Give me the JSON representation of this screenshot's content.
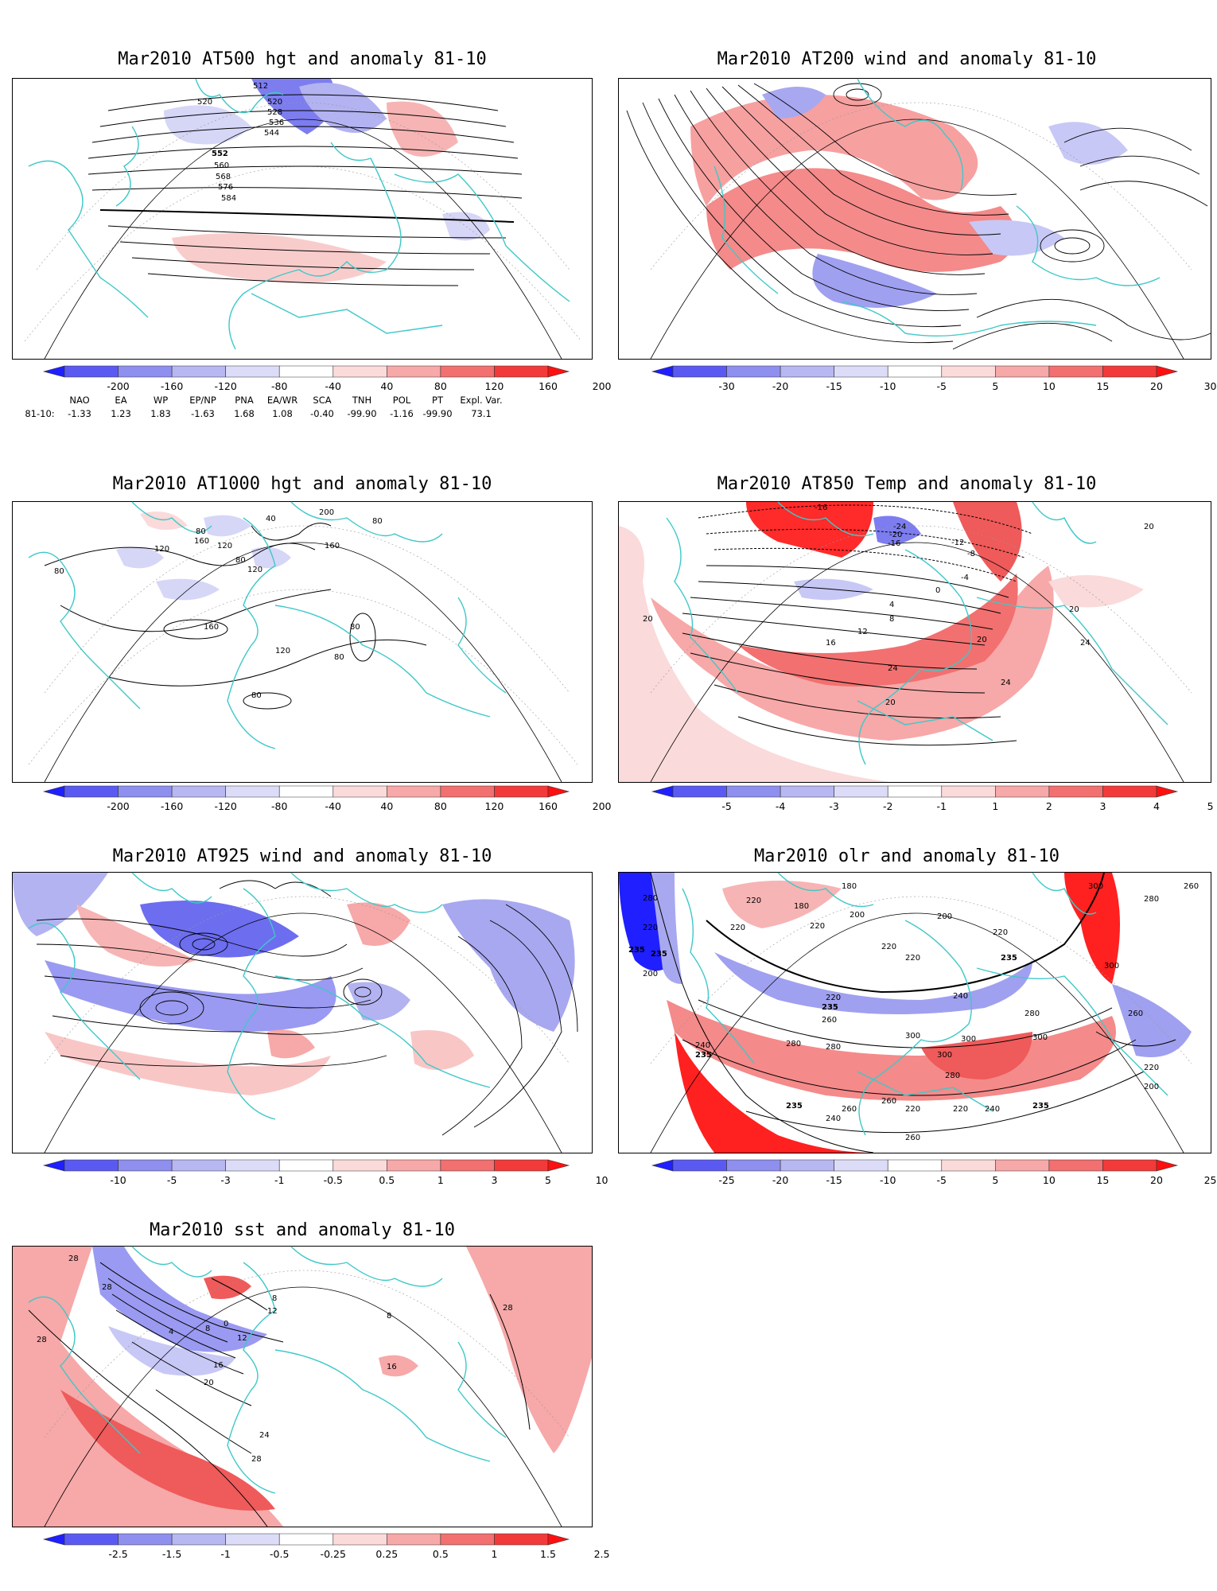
{
  "panels": [
    {
      "key": "p500",
      "title": "Mar2010 AT500 hgt and anomaly 81-10",
      "colorbar": {
        "labels": [
          "-200",
          "-160",
          "-120",
          "-80",
          "-40",
          "40",
          "80",
          "120",
          "160",
          "200"
        ]
      },
      "contour_labels": [
        "512",
        "520",
        "520",
        "528",
        "536",
        "544",
        "552",
        "560",
        "568",
        "576",
        "584"
      ]
    },
    {
      "key": "p200",
      "title": "Mar2010 AT200 wind and anomaly 81-10",
      "colorbar": {
        "labels": [
          "-30",
          "-20",
          "-15",
          "-10",
          "-5",
          "5",
          "10",
          "15",
          "20",
          "30"
        ]
      },
      "contour_labels": []
    },
    {
      "key": "p1000",
      "title": "Mar2010 AT1000 hgt and anomaly 81-10",
      "colorbar": {
        "labels": [
          "-200",
          "-160",
          "-120",
          "-80",
          "-40",
          "40",
          "80",
          "120",
          "160",
          "200"
        ]
      },
      "contour_labels": [
        "40",
        "200",
        "160",
        "80",
        "120",
        "80",
        "160",
        "120",
        "80",
        "80",
        "120",
        "160",
        "80",
        "120",
        "80",
        "80"
      ]
    },
    {
      "key": "p850",
      "title": "Mar2010 AT850 Temp and anomaly 81-10",
      "colorbar": {
        "labels": [
          "-5",
          "-4",
          "-3",
          "-2",
          "-1",
          "1",
          "2",
          "3",
          "4",
          "5"
        ]
      },
      "contour_labels": [
        "-16",
        "-24",
        "-20",
        "-16",
        "-12",
        "-8",
        "-4",
        "0",
        "4",
        "8",
        "12",
        "16",
        "20",
        "20",
        "24",
        "24",
        "20",
        "24",
        "20",
        "20"
      ]
    },
    {
      "key": "p925",
      "title": "Mar2010 AT925 wind and anomaly 81-10",
      "colorbar": {
        "labels": [
          "-10",
          "-5",
          "-3",
          "-1",
          "-0.5",
          "0.5",
          "1",
          "3",
          "5",
          "10"
        ]
      },
      "contour_labels": []
    },
    {
      "key": "polr",
      "title": "Mar2010 olr and anomaly 81-10",
      "colorbar": {
        "labels": [
          "-25",
          "-20",
          "-15",
          "-10",
          "-5",
          "5",
          "10",
          "15",
          "20",
          "25"
        ]
      },
      "contour_labels": [
        "280",
        "220",
        "235",
        "235",
        "200",
        "220",
        "180",
        "180",
        "200",
        "220",
        "220",
        "200",
        "220",
        "220",
        "220",
        "235",
        "220",
        "235",
        "240",
        "260",
        "280",
        "280",
        "300",
        "300",
        "300",
        "280",
        "260",
        "240",
        "235",
        "220",
        "280",
        "300",
        "260",
        "220",
        "235",
        "240",
        "260",
        "235",
        "240",
        "220",
        "260",
        "300",
        "300",
        "280",
        "260",
        "200"
      ]
    },
    {
      "key": "psst",
      "title": "Mar2010 sst and anomaly 81-10",
      "colorbar": {
        "labels": [
          "-2.5",
          "-1.5",
          "-1",
          "-0.5",
          "-0.25",
          "0.25",
          "0.5",
          "1",
          "1.5",
          "2.5"
        ]
      },
      "contour_labels": [
        "28",
        "28",
        "28",
        "0",
        "4",
        "8",
        "12",
        "16",
        "20",
        "24",
        "28",
        "8",
        "12",
        "16",
        "28",
        "8"
      ]
    }
  ],
  "indices": {
    "headers": [
      "NAO",
      "EA",
      "WP",
      "EP/NP",
      "PNA",
      "EA/WR",
      "SCA",
      "TNH",
      "POL",
      "PT",
      "Expl. Var."
    ],
    "row_label": "81-10:",
    "values": [
      "-1.33",
      "1.23",
      "1.83",
      "-1.63",
      "1.68",
      "1.08",
      "-0.40",
      "-99.90",
      "-1.16",
      "-99.90",
      "73.1"
    ]
  },
  "colors": {
    "coast": "#3fc8c8",
    "contour": "#000000",
    "neg_strong": "#2b2bff",
    "neg_weak": "#d8d8f8",
    "pos_weak": "#fadada",
    "pos_strong": "#ff2020"
  },
  "palette": [
    "#1f1fff",
    "#5a5af2",
    "#8f8fef",
    "#b7b7f2",
    "#dcdcf8",
    "#ffffff",
    "#fbdada",
    "#f7a8a8",
    "#f27070",
    "#f23a3a",
    "#ff1010"
  ]
}
